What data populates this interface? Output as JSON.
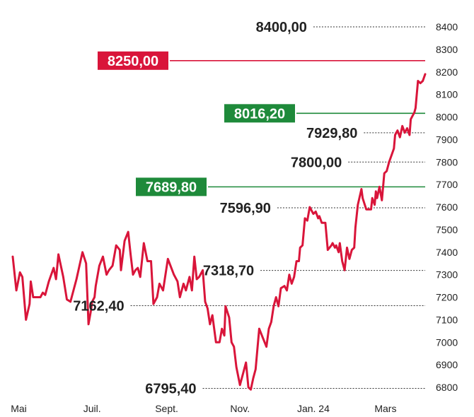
{
  "chart_data": {
    "type": "line",
    "colors": {
      "line": "#d9153a",
      "resistance": "#d9153a",
      "support": "#1e8a3a",
      "dotted": "#333333",
      "text": "#222222"
    },
    "y_axis": {
      "position": "right",
      "ylim": [
        6780,
        8460
      ],
      "ticks": [
        "8400",
        "8300",
        "8200",
        "8100",
        "8000",
        "7900",
        "7800",
        "7700",
        "7600",
        "7500",
        "7400",
        "7300",
        "7200",
        "7100",
        "7000",
        "6900",
        "6800"
      ]
    },
    "x_axis": {
      "ticks": [
        {
          "label": "Mai",
          "t": 5
        },
        {
          "label": "Juil.",
          "t": 66
        },
        {
          "label": "Sept.",
          "t": 128
        },
        {
          "label": "Nov.",
          "t": 189
        },
        {
          "label": "Jan. 24",
          "t": 250
        },
        {
          "label": "Mars",
          "t": 310
        }
      ]
    },
    "levels": [
      {
        "value": 8400,
        "label": "8400,00",
        "style": "dotted",
        "from_t": 250
      },
      {
        "value": 8250,
        "label": "8250,00",
        "style": "box-red"
      },
      {
        "value": 8016.2,
        "label": "8016,20",
        "style": "box-green"
      },
      {
        "value": 7929.8,
        "label": "7929,80",
        "style": "dotted",
        "from_t": 292
      },
      {
        "value": 7800,
        "label": "7800,00",
        "style": "dotted",
        "from_t": 279
      },
      {
        "value": 7689.8,
        "label": "7689,80",
        "style": "box-green"
      },
      {
        "value": 7596.9,
        "label": "7596,90",
        "style": "dotted",
        "from_t": 220
      },
      {
        "value": 7318.7,
        "label": "7318,70",
        "style": "dotted",
        "from_t": 206
      },
      {
        "value": 7162.4,
        "label": "7162,40",
        "style": "dotted",
        "from_t": 98
      },
      {
        "value": 6795.4,
        "label": "6795,40",
        "style": "dotted",
        "from_t": 158
      }
    ],
    "series": [
      {
        "values": [
          [
            0,
            7380
          ],
          [
            3,
            7230
          ],
          [
            6,
            7310
          ],
          [
            8,
            7290
          ],
          [
            11,
            7100
          ],
          [
            14,
            7170
          ],
          [
            15,
            7270
          ],
          [
            17,
            7200
          ],
          [
            20,
            7200
          ],
          [
            23,
            7200
          ],
          [
            25,
            7220
          ],
          [
            27,
            7210
          ],
          [
            30,
            7270
          ],
          [
            34,
            7330
          ],
          [
            36,
            7280
          ],
          [
            38,
            7390
          ],
          [
            42,
            7290
          ],
          [
            45,
            7190
          ],
          [
            48,
            7180
          ],
          [
            53,
            7280
          ],
          [
            58,
            7400
          ],
          [
            61,
            7350
          ],
          [
            63,
            7080
          ],
          [
            65,
            7140
          ],
          [
            66,
            7180
          ],
          [
            68,
            7200
          ],
          [
            69,
            7250
          ],
          [
            72,
            7340
          ],
          [
            75,
            7380
          ],
          [
            78,
            7300
          ],
          [
            80,
            7320
          ],
          [
            83,
            7340
          ],
          [
            86,
            7430
          ],
          [
            89,
            7410
          ],
          [
            90,
            7320
          ],
          [
            93,
            7450
          ],
          [
            96,
            7490
          ],
          [
            98,
            7390
          ],
          [
            100,
            7300
          ],
          [
            102,
            7320
          ],
          [
            104,
            7330
          ],
          [
            106,
            7290
          ],
          [
            109,
            7440
          ],
          [
            112,
            7360
          ],
          [
            115,
            7360
          ],
          [
            117,
            7170
          ],
          [
            120,
            7200
          ],
          [
            122,
            7260
          ],
          [
            125,
            7230
          ],
          [
            129,
            7370
          ],
          [
            134,
            7300
          ],
          [
            137,
            7270
          ],
          [
            139,
            7200
          ],
          [
            142,
            7260
          ],
          [
            144,
            7230
          ],
          [
            147,
            7290
          ],
          [
            149,
            7230
          ],
          [
            151,
            7380
          ],
          [
            153,
            7280
          ],
          [
            155,
            7290
          ],
          [
            158,
            7320
          ],
          [
            160,
            7180
          ],
          [
            162,
            7150
          ],
          [
            164,
            7080
          ],
          [
            166,
            7120
          ],
          [
            169,
            7000
          ],
          [
            172,
            7000
          ],
          [
            174,
            7060
          ],
          [
            176,
            7030
          ],
          [
            177,
            7160
          ],
          [
            180,
            7110
          ],
          [
            182,
            7000
          ],
          [
            184,
            6980
          ],
          [
            186,
            6890
          ],
          [
            189,
            6810
          ],
          [
            192,
            6870
          ],
          [
            194,
            6910
          ],
          [
            196,
            6800
          ],
          [
            198,
            6790
          ],
          [
            200,
            6840
          ],
          [
            202,
            6880
          ],
          [
            205,
            7060
          ],
          [
            208,
            7020
          ],
          [
            211,
            6980
          ],
          [
            213,
            7060
          ],
          [
            215,
            7090
          ],
          [
            217,
            7160
          ],
          [
            219,
            7200
          ],
          [
            221,
            7160
          ],
          [
            223,
            7240
          ],
          [
            226,
            7250
          ],
          [
            228,
            7230
          ],
          [
            230,
            7300
          ],
          [
            232,
            7260
          ],
          [
            234,
            7290
          ],
          [
            236,
            7360
          ],
          [
            238,
            7360
          ],
          [
            239,
            7420
          ],
          [
            241,
            7430
          ],
          [
            243,
            7550
          ],
          [
            245,
            7540
          ],
          [
            247,
            7600
          ],
          [
            250,
            7570
          ],
          [
            252,
            7580
          ],
          [
            254,
            7550
          ],
          [
            255,
            7560
          ],
          [
            257,
            7530
          ],
          [
            260,
            7530
          ],
          [
            262,
            7410
          ],
          [
            265,
            7430
          ],
          [
            266,
            7440
          ],
          [
            268,
            7420
          ],
          [
            269,
            7430
          ],
          [
            271,
            7400
          ],
          [
            272,
            7440
          ],
          [
            274,
            7360
          ],
          [
            276,
            7320
          ],
          [
            278,
            7420
          ],
          [
            280,
            7370
          ],
          [
            282,
            7410
          ],
          [
            284,
            7420
          ],
          [
            285,
            7510
          ],
          [
            287,
            7610
          ],
          [
            290,
            7680
          ],
          [
            291,
            7640
          ],
          [
            294,
            7590
          ],
          [
            296,
            7590
          ],
          [
            298,
            7590
          ],
          [
            299,
            7640
          ],
          [
            301,
            7610
          ],
          [
            302,
            7670
          ],
          [
            303,
            7640
          ],
          [
            305,
            7690
          ],
          [
            307,
            7630
          ],
          [
            309,
            7750
          ],
          [
            311,
            7760
          ],
          [
            313,
            7800
          ],
          [
            315,
            7830
          ],
          [
            317,
            7860
          ],
          [
            318,
            7920
          ],
          [
            320,
            7940
          ],
          [
            322,
            7910
          ],
          [
            324,
            7960
          ],
          [
            326,
            7930
          ],
          [
            328,
            7950
          ],
          [
            330,
            7920
          ],
          [
            331,
            7990
          ],
          [
            334,
            8020
          ],
          [
            335,
            8040
          ],
          [
            337,
            8160
          ],
          [
            339,
            8150
          ],
          [
            341,
            8160
          ],
          [
            343,
            8190
          ]
        ]
      }
    ]
  }
}
